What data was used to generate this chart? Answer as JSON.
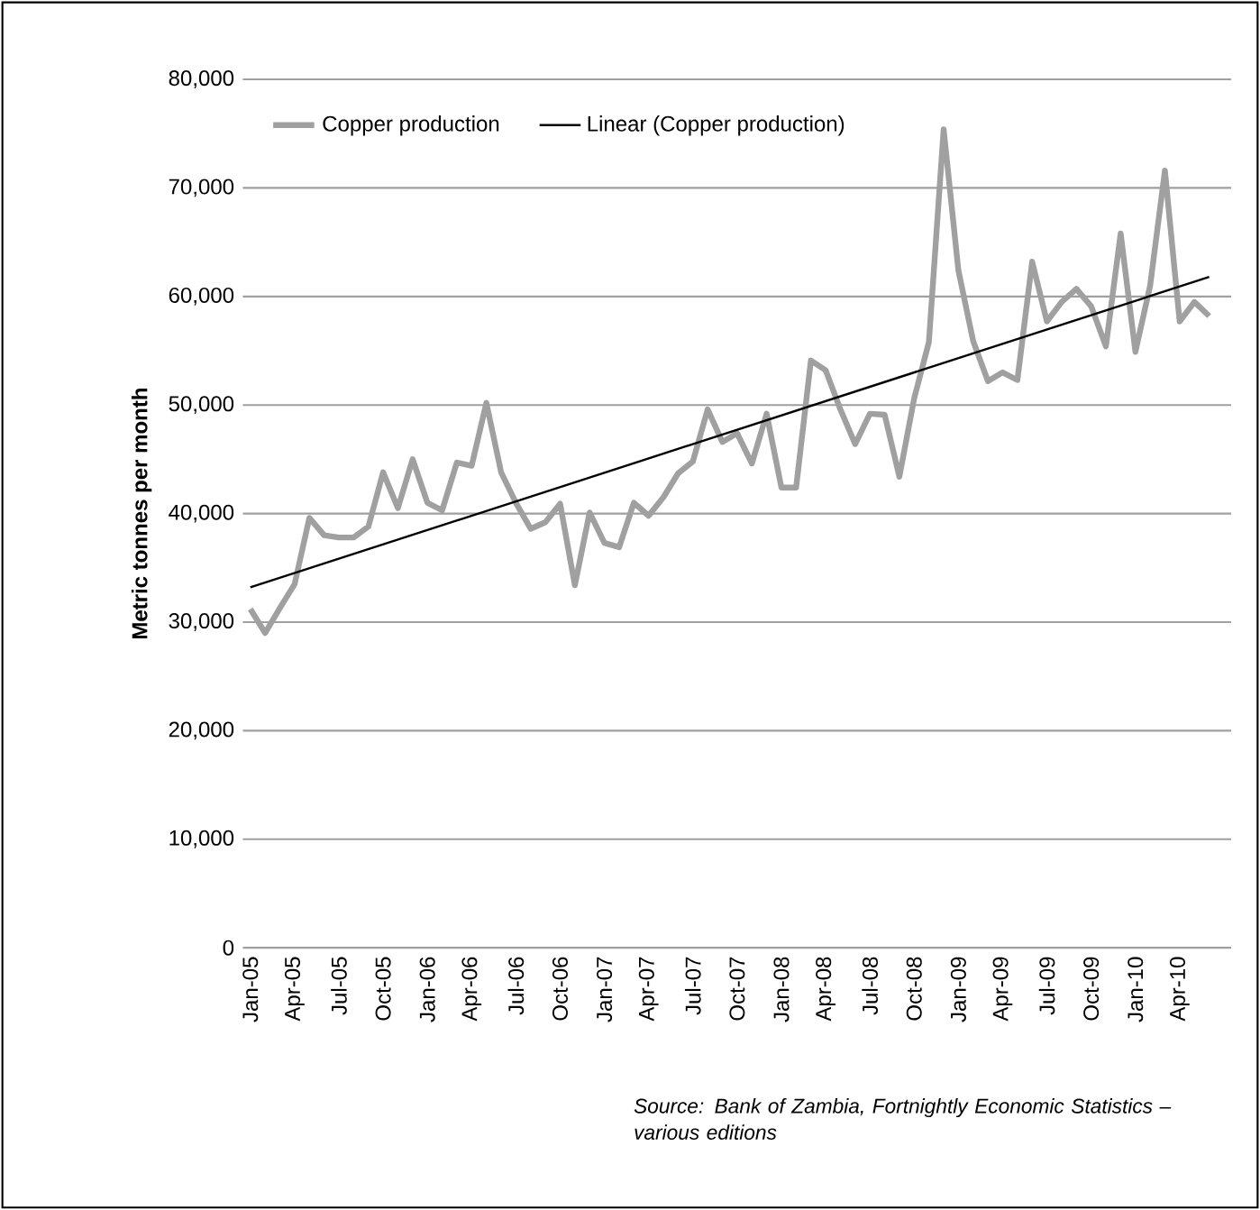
{
  "chart_data": {
    "type": "line",
    "ylabel": "Metric tonnes per month",
    "annotations": [
      "Source: Bank of Zambia, Fortnightly Economic Statistics – various editions"
    ],
    "x": [
      "2005-01",
      "2005-02",
      "2005-03",
      "2005-04",
      "2005-05",
      "2005-06",
      "2005-07",
      "2005-08",
      "2005-09",
      "2005-10",
      "2005-11",
      "2005-12",
      "2006-01",
      "2006-02",
      "2006-03",
      "2006-04",
      "2006-05",
      "2006-06",
      "2006-07",
      "2006-08",
      "2006-09",
      "2006-10",
      "2006-11",
      "2006-12",
      "2007-01",
      "2007-02",
      "2007-03",
      "2007-04",
      "2007-05",
      "2007-06",
      "2007-07",
      "2007-08",
      "2007-09",
      "2007-10",
      "2007-11",
      "2007-12",
      "2008-01",
      "2008-02",
      "2008-03",
      "2008-04",
      "2008-05",
      "2008-06",
      "2008-07",
      "2008-08",
      "2008-09",
      "2008-10",
      "2008-11",
      "2008-12",
      "2009-01",
      "2009-02",
      "2009-03",
      "2009-04",
      "2009-05",
      "2009-06",
      "2009-07",
      "2009-08",
      "2009-09",
      "2009-10",
      "2009-11",
      "2009-12",
      "2010-01",
      "2010-02",
      "2010-03",
      "2010-04",
      "2010-05",
      "2010-06"
    ],
    "series": [
      {
        "name": "Copper production",
        "color": "#a0a0a0",
        "values": [
          31200,
          29000,
          31300,
          33500,
          39600,
          38000,
          37800,
          37800,
          38800,
          43800,
          40500,
          45000,
          41000,
          40300,
          44700,
          44400,
          50200,
          43800,
          41000,
          38600,
          39200,
          40900,
          33400,
          40100,
          37300,
          36900,
          41000,
          39800,
          41500,
          43700,
          44800,
          49600,
          46600,
          47400,
          44600,
          49200,
          42400,
          42400,
          54100,
          53200,
          49600,
          46400,
          49200,
          49100,
          43400,
          50600,
          55800,
          75400,
          62400,
          55900,
          52200,
          53000,
          52300,
          63200,
          57700,
          59500,
          60700,
          59100,
          55400,
          65800,
          54900,
          61000,
          71600,
          57700,
          59500,
          58200
        ]
      },
      {
        "name": "Linear (Copper production)",
        "color": "#000000",
        "x": [
          "2005-01",
          "2010-06"
        ],
        "values": [
          33200,
          61800
        ]
      }
    ],
    "xlim": [
      "2004-12-16",
      "2010-07-16"
    ],
    "xticks": [
      {
        "value": "2005-01",
        "label": "Jan-05"
      },
      {
        "value": "2005-04",
        "label": "Apr-05"
      },
      {
        "value": "2005-07",
        "label": "Jul-05"
      },
      {
        "value": "2005-10",
        "label": "Oct-05"
      },
      {
        "value": "2006-01",
        "label": "Jan-06"
      },
      {
        "value": "2006-04",
        "label": "Apr-06"
      },
      {
        "value": "2006-07",
        "label": "Jul-06"
      },
      {
        "value": "2006-10",
        "label": "Oct-06"
      },
      {
        "value": "2007-01",
        "label": "Jan-07"
      },
      {
        "value": "2007-04",
        "label": "Apr-07"
      },
      {
        "value": "2007-07",
        "label": "Jul-07"
      },
      {
        "value": "2007-10",
        "label": "Oct-07"
      },
      {
        "value": "2008-01",
        "label": "Jan-08"
      },
      {
        "value": "2008-04",
        "label": "Apr-08"
      },
      {
        "value": "2008-07",
        "label": "Jul-08"
      },
      {
        "value": "2008-10",
        "label": "Oct-08"
      },
      {
        "value": "2009-01",
        "label": "Jan-09"
      },
      {
        "value": "2009-04",
        "label": "Apr-09"
      },
      {
        "value": "2009-07",
        "label": "Jul-09"
      },
      {
        "value": "2009-10",
        "label": "Oct-09"
      },
      {
        "value": "2010-01",
        "label": "Jan-10"
      },
      {
        "value": "2010-04",
        "label": "Apr-10"
      }
    ],
    "ylim": [
      0,
      80000
    ],
    "yticks": [
      0,
      {
        "value": 10000,
        "label": "10,000"
      },
      {
        "value": 20000,
        "label": "20,000"
      },
      {
        "value": 30000,
        "label": "30,000"
      },
      {
        "value": 40000,
        "label": "40,000"
      },
      {
        "value": 50000,
        "label": "50,000"
      },
      {
        "value": 60000,
        "label": "60,000"
      },
      {
        "value": 70000,
        "label": "70,000"
      },
      {
        "value": 80000,
        "label": "80,000"
      }
    ],
    "grid": "y",
    "legend": "top left",
    "marker": "none",
    "line_style": "solid"
  }
}
